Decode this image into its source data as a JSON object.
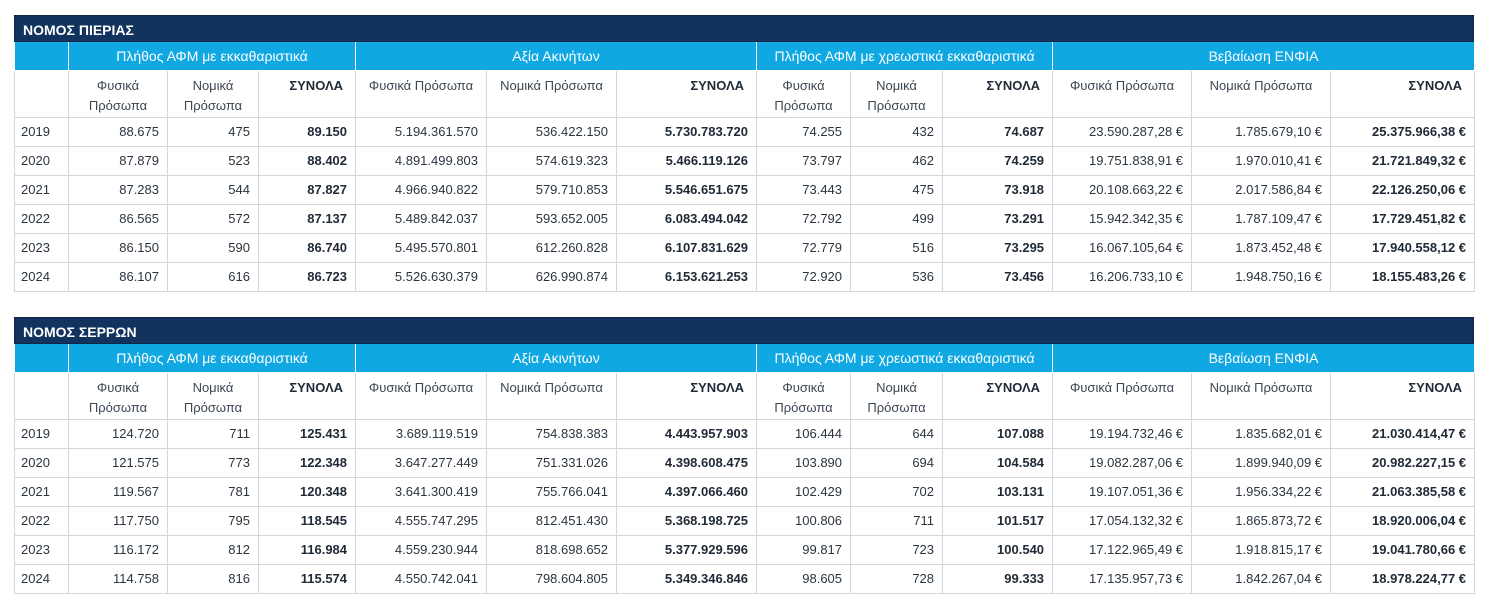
{
  "group_headers": [
    "Πλήθος ΑΦΜ με εκκαθαριστικά",
    "Αξία Ακινήτων",
    "Πλήθος ΑΦΜ με χρεωστικά εκκαθαριστικά",
    "Βεβαίωση ΕΝΦΙΑ"
  ],
  "sub_headers": {
    "natural": "Φυσικά Πρόσωπα",
    "legal": "Νομικά Πρόσωπα",
    "total": "ΣΥΝΟΛΑ"
  },
  "tables": [
    {
      "title": "ΝΟΜΟΣ ΠΙΕΡΙΑΣ",
      "rows": [
        [
          "2019",
          "88.675",
          "475",
          "89.150",
          "5.194.361.570",
          "536.422.150",
          "5.730.783.720",
          "74.255",
          "432",
          "74.687",
          "23.590.287,28 €",
          "1.785.679,10 €",
          "25.375.966,38 €"
        ],
        [
          "2020",
          "87.879",
          "523",
          "88.402",
          "4.891.499.803",
          "574.619.323",
          "5.466.119.126",
          "73.797",
          "462",
          "74.259",
          "19.751.838,91 €",
          "1.970.010,41 €",
          "21.721.849,32 €"
        ],
        [
          "2021",
          "87.283",
          "544",
          "87.827",
          "4.966.940.822",
          "579.710.853",
          "5.546.651.675",
          "73.443",
          "475",
          "73.918",
          "20.108.663,22 €",
          "2.017.586,84 €",
          "22.126.250,06 €"
        ],
        [
          "2022",
          "86.565",
          "572",
          "87.137",
          "5.489.842.037",
          "593.652.005",
          "6.083.494.042",
          "72.792",
          "499",
          "73.291",
          "15.942.342,35 €",
          "1.787.109,47 €",
          "17.729.451,82 €"
        ],
        [
          "2023",
          "86.150",
          "590",
          "86.740",
          "5.495.570.801",
          "612.260.828",
          "6.107.831.629",
          "72.779",
          "516",
          "73.295",
          "16.067.105,64 €",
          "1.873.452,48 €",
          "17.940.558,12 €"
        ],
        [
          "2024",
          "86.107",
          "616",
          "86.723",
          "5.526.630.379",
          "626.990.874",
          "6.153.621.253",
          "72.920",
          "536",
          "73.456",
          "16.206.733,10 €",
          "1.948.750,16 €",
          "18.155.483,26 €"
        ]
      ]
    },
    {
      "title": "ΝΟΜΟΣ ΣΕΡΡΩΝ",
      "rows": [
        [
          "2019",
          "124.720",
          "711",
          "125.431",
          "3.689.119.519",
          "754.838.383",
          "4.443.957.903",
          "106.444",
          "644",
          "107.088",
          "19.194.732,46 €",
          "1.835.682,01 €",
          "21.030.414,47 €"
        ],
        [
          "2020",
          "121.575",
          "773",
          "122.348",
          "3.647.277.449",
          "751.331.026",
          "4.398.608.475",
          "103.890",
          "694",
          "104.584",
          "19.082.287,06 €",
          "1.899.940,09 €",
          "20.982.227,15 €"
        ],
        [
          "2021",
          "119.567",
          "781",
          "120.348",
          "3.641.300.419",
          "755.766.041",
          "4.397.066.460",
          "102.429",
          "702",
          "103.131",
          "19.107.051,36 €",
          "1.956.334,22 €",
          "21.063.385,58 €"
        ],
        [
          "2022",
          "117.750",
          "795",
          "118.545",
          "4.555.747.295",
          "812.451.430",
          "5.368.198.725",
          "100.806",
          "711",
          "101.517",
          "17.054.132,32 €",
          "1.865.873,72 €",
          "18.920.006,04 €"
        ],
        [
          "2023",
          "116.172",
          "812",
          "116.984",
          "4.559.230.944",
          "818.698.652",
          "5.377.929.596",
          "99.817",
          "723",
          "100.540",
          "17.122.965,49 €",
          "1.918.815,17 €",
          "19.041.780,66 €"
        ],
        [
          "2024",
          "114.758",
          "816",
          "115.574",
          "4.550.742.041",
          "798.604.805",
          "5.349.346.846",
          "98.605",
          "728",
          "99.333",
          "17.135.957,73 €",
          "1.842.267,04 €",
          "18.978.224,77 €"
        ]
      ]
    }
  ]
}
